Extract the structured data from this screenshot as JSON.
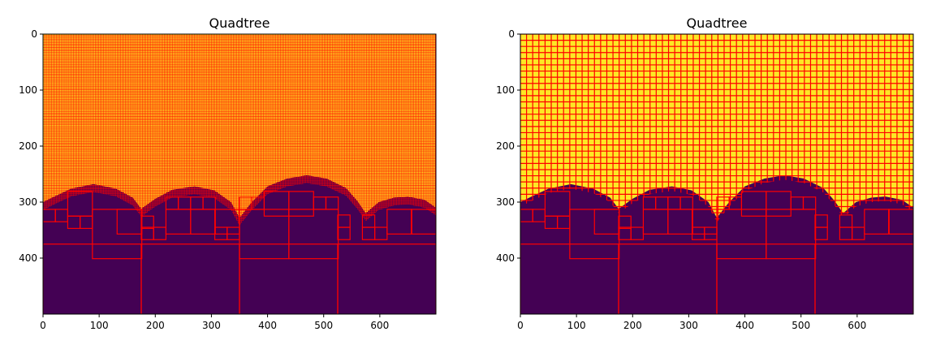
{
  "chart_data": [
    {
      "type": "heatmap",
      "title": "Quadtree",
      "xlim": [
        0,
        700
      ],
      "ylim": [
        500,
        0
      ],
      "y_axis_inverted": true,
      "xticks": [
        0,
        100,
        200,
        300,
        400,
        500,
        600
      ],
      "yticks": [
        0,
        100,
        200,
        300,
        400
      ],
      "image": {
        "colormap": "viridis",
        "background_value_color": "#fde725",
        "foreground_value_color": "#440154",
        "boundary_profile_xy": [
          [
            0,
            300
          ],
          [
            20,
            290
          ],
          [
            50,
            276
          ],
          [
            90,
            268
          ],
          [
            130,
            276
          ],
          [
            160,
            292
          ],
          [
            175,
            312
          ],
          [
            200,
            294
          ],
          [
            230,
            278
          ],
          [
            270,
            272
          ],
          [
            305,
            279
          ],
          [
            335,
            300
          ],
          [
            350,
            328
          ],
          [
            372,
            300
          ],
          [
            400,
            272
          ],
          [
            435,
            258
          ],
          [
            470,
            252
          ],
          [
            505,
            258
          ],
          [
            540,
            275
          ],
          [
            560,
            298
          ],
          [
            575,
            320
          ],
          [
            598,
            300
          ],
          [
            625,
            292
          ],
          [
            650,
            290
          ],
          [
            680,
            296
          ],
          [
            700,
            310
          ]
        ]
      },
      "quadtree_line_color": "#ff0000",
      "fine_cell_size": 3,
      "fine_cells_shown": true
    },
    {
      "type": "heatmap",
      "title": "Quadtree",
      "xlim": [
        0,
        700
      ],
      "ylim": [
        500,
        0
      ],
      "y_axis_inverted": true,
      "xticks": [
        0,
        100,
        200,
        300,
        400,
        500,
        600
      ],
      "yticks": [
        0,
        100,
        200,
        300,
        400
      ],
      "image": {
        "colormap": "viridis",
        "background_value_color": "#fde725",
        "foreground_value_color": "#440154",
        "boundary_profile_xy": [
          [
            0,
            300
          ],
          [
            20,
            290
          ],
          [
            50,
            276
          ],
          [
            90,
            268
          ],
          [
            130,
            276
          ],
          [
            160,
            292
          ],
          [
            175,
            312
          ],
          [
            200,
            294
          ],
          [
            230,
            278
          ],
          [
            270,
            272
          ],
          [
            305,
            279
          ],
          [
            335,
            300
          ],
          [
            350,
            328
          ],
          [
            372,
            300
          ],
          [
            400,
            272
          ],
          [
            435,
            258
          ],
          [
            470,
            252
          ],
          [
            505,
            258
          ],
          [
            540,
            275
          ],
          [
            560,
            298
          ],
          [
            575,
            320
          ],
          [
            598,
            300
          ],
          [
            625,
            292
          ],
          [
            650,
            290
          ],
          [
            680,
            296
          ],
          [
            700,
            310
          ]
        ]
      },
      "quadtree_line_color": "#ff0000",
      "fine_cell_size": 11,
      "fine_cells_shown": false
    }
  ],
  "quadtree_blocks": {
    "coarse_cells_x0_y0_size": [
      [
        0,
        375,
        175
      ],
      [
        175,
        375,
        175
      ],
      [
        350,
        375,
        175
      ],
      [
        525,
        375,
        175
      ],
      [
        88,
        313,
        88
      ],
      [
        350,
        313,
        88
      ],
      [
        438,
        313,
        88
      ],
      [
        44,
        281,
        44
      ],
      [
        132,
        313,
        44
      ],
      [
        219,
        313,
        44
      ],
      [
        263,
        313,
        44
      ],
      [
        306,
        313,
        44
      ],
      [
        394,
        281,
        44
      ],
      [
        438,
        281,
        44
      ],
      [
        613,
        313,
        44
      ],
      [
        656,
        313,
        44
      ],
      [
        0,
        313,
        22
      ],
      [
        22,
        313,
        22
      ],
      [
        44,
        325,
        22
      ],
      [
        66,
        325,
        22
      ],
      [
        175,
        345,
        22
      ],
      [
        197,
        345,
        22
      ],
      [
        175,
        325,
        22
      ],
      [
        219,
        291,
        22
      ],
      [
        241,
        291,
        22
      ],
      [
        263,
        291,
        22
      ],
      [
        285,
        291,
        22
      ],
      [
        306,
        345,
        22
      ],
      [
        328,
        345,
        22
      ],
      [
        350,
        291,
        22
      ],
      [
        372,
        291,
        22
      ],
      [
        482,
        291,
        22
      ],
      [
        504,
        291,
        22
      ],
      [
        525,
        345,
        22
      ],
      [
        525,
        323,
        22
      ],
      [
        569,
        345,
        22
      ],
      [
        569,
        323,
        22
      ],
      [
        591,
        345,
        22
      ]
    ]
  }
}
